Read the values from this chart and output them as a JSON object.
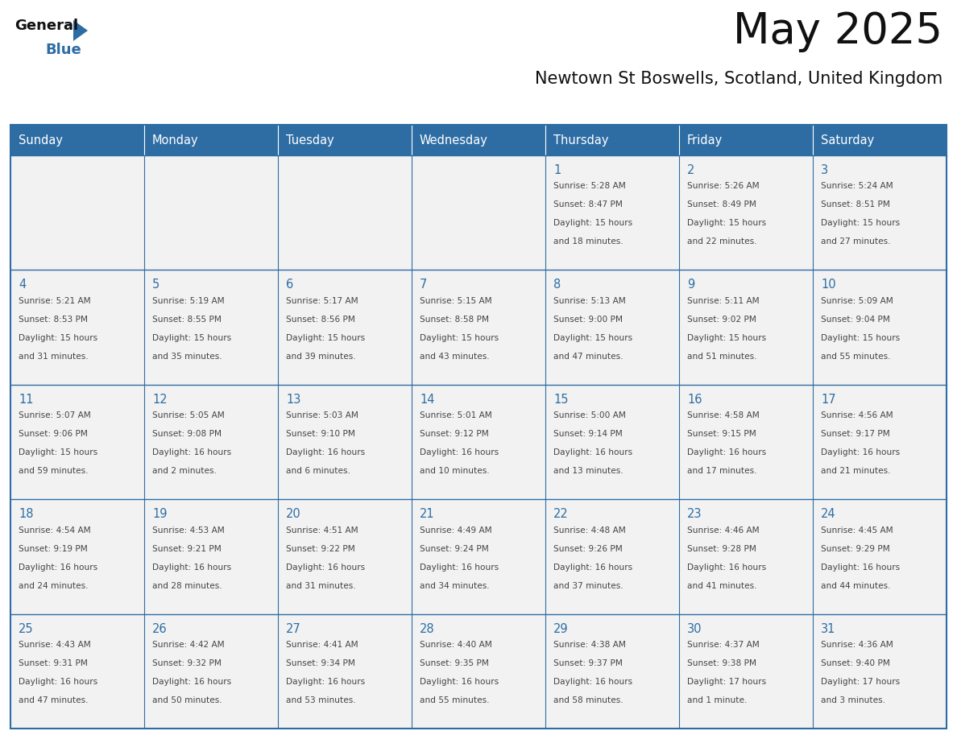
{
  "title": "May 2025",
  "subtitle": "Newtown St Boswells, Scotland, United Kingdom",
  "days_of_week": [
    "Sunday",
    "Monday",
    "Tuesday",
    "Wednesday",
    "Thursday",
    "Friday",
    "Saturday"
  ],
  "header_bg": "#2E6DA4",
  "header_text": "#FFFFFF",
  "cell_bg": "#F2F2F2",
  "border_color": "#2E6DA4",
  "day_number_color": "#2E6DA4",
  "text_color": "#444444",
  "title_color": "#111111",
  "logo_general_color": "#111111",
  "logo_blue_color": "#2E6DA4",
  "calendar_data": [
    [
      {
        "day": null,
        "sunrise": null,
        "sunset": null,
        "daylight": null
      },
      {
        "day": null,
        "sunrise": null,
        "sunset": null,
        "daylight": null
      },
      {
        "day": null,
        "sunrise": null,
        "sunset": null,
        "daylight": null
      },
      {
        "day": null,
        "sunrise": null,
        "sunset": null,
        "daylight": null
      },
      {
        "day": 1,
        "sunrise": "5:28 AM",
        "sunset": "8:47 PM",
        "daylight": "15 hours\nand 18 minutes."
      },
      {
        "day": 2,
        "sunrise": "5:26 AM",
        "sunset": "8:49 PM",
        "daylight": "15 hours\nand 22 minutes."
      },
      {
        "day": 3,
        "sunrise": "5:24 AM",
        "sunset": "8:51 PM",
        "daylight": "15 hours\nand 27 minutes."
      }
    ],
    [
      {
        "day": 4,
        "sunrise": "5:21 AM",
        "sunset": "8:53 PM",
        "daylight": "15 hours\nand 31 minutes."
      },
      {
        "day": 5,
        "sunrise": "5:19 AM",
        "sunset": "8:55 PM",
        "daylight": "15 hours\nand 35 minutes."
      },
      {
        "day": 6,
        "sunrise": "5:17 AM",
        "sunset": "8:56 PM",
        "daylight": "15 hours\nand 39 minutes."
      },
      {
        "day": 7,
        "sunrise": "5:15 AM",
        "sunset": "8:58 PM",
        "daylight": "15 hours\nand 43 minutes."
      },
      {
        "day": 8,
        "sunrise": "5:13 AM",
        "sunset": "9:00 PM",
        "daylight": "15 hours\nand 47 minutes."
      },
      {
        "day": 9,
        "sunrise": "5:11 AM",
        "sunset": "9:02 PM",
        "daylight": "15 hours\nand 51 minutes."
      },
      {
        "day": 10,
        "sunrise": "5:09 AM",
        "sunset": "9:04 PM",
        "daylight": "15 hours\nand 55 minutes."
      }
    ],
    [
      {
        "day": 11,
        "sunrise": "5:07 AM",
        "sunset": "9:06 PM",
        "daylight": "15 hours\nand 59 minutes."
      },
      {
        "day": 12,
        "sunrise": "5:05 AM",
        "sunset": "9:08 PM",
        "daylight": "16 hours\nand 2 minutes."
      },
      {
        "day": 13,
        "sunrise": "5:03 AM",
        "sunset": "9:10 PM",
        "daylight": "16 hours\nand 6 minutes."
      },
      {
        "day": 14,
        "sunrise": "5:01 AM",
        "sunset": "9:12 PM",
        "daylight": "16 hours\nand 10 minutes."
      },
      {
        "day": 15,
        "sunrise": "5:00 AM",
        "sunset": "9:14 PM",
        "daylight": "16 hours\nand 13 minutes."
      },
      {
        "day": 16,
        "sunrise": "4:58 AM",
        "sunset": "9:15 PM",
        "daylight": "16 hours\nand 17 minutes."
      },
      {
        "day": 17,
        "sunrise": "4:56 AM",
        "sunset": "9:17 PM",
        "daylight": "16 hours\nand 21 minutes."
      }
    ],
    [
      {
        "day": 18,
        "sunrise": "4:54 AM",
        "sunset": "9:19 PM",
        "daylight": "16 hours\nand 24 minutes."
      },
      {
        "day": 19,
        "sunrise": "4:53 AM",
        "sunset": "9:21 PM",
        "daylight": "16 hours\nand 28 minutes."
      },
      {
        "day": 20,
        "sunrise": "4:51 AM",
        "sunset": "9:22 PM",
        "daylight": "16 hours\nand 31 minutes."
      },
      {
        "day": 21,
        "sunrise": "4:49 AM",
        "sunset": "9:24 PM",
        "daylight": "16 hours\nand 34 minutes."
      },
      {
        "day": 22,
        "sunrise": "4:48 AM",
        "sunset": "9:26 PM",
        "daylight": "16 hours\nand 37 minutes."
      },
      {
        "day": 23,
        "sunrise": "4:46 AM",
        "sunset": "9:28 PM",
        "daylight": "16 hours\nand 41 minutes."
      },
      {
        "day": 24,
        "sunrise": "4:45 AM",
        "sunset": "9:29 PM",
        "daylight": "16 hours\nand 44 minutes."
      }
    ],
    [
      {
        "day": 25,
        "sunrise": "4:43 AM",
        "sunset": "9:31 PM",
        "daylight": "16 hours\nand 47 minutes."
      },
      {
        "day": 26,
        "sunrise": "4:42 AM",
        "sunset": "9:32 PM",
        "daylight": "16 hours\nand 50 minutes."
      },
      {
        "day": 27,
        "sunrise": "4:41 AM",
        "sunset": "9:34 PM",
        "daylight": "16 hours\nand 53 minutes."
      },
      {
        "day": 28,
        "sunrise": "4:40 AM",
        "sunset": "9:35 PM",
        "daylight": "16 hours\nand 55 minutes."
      },
      {
        "day": 29,
        "sunrise": "4:38 AM",
        "sunset": "9:37 PM",
        "daylight": "16 hours\nand 58 minutes."
      },
      {
        "day": 30,
        "sunrise": "4:37 AM",
        "sunset": "9:38 PM",
        "daylight": "17 hours\nand 1 minute."
      },
      {
        "day": 31,
        "sunrise": "4:36 AM",
        "sunset": "9:40 PM",
        "daylight": "17 hours\nand 3 minutes."
      }
    ]
  ]
}
